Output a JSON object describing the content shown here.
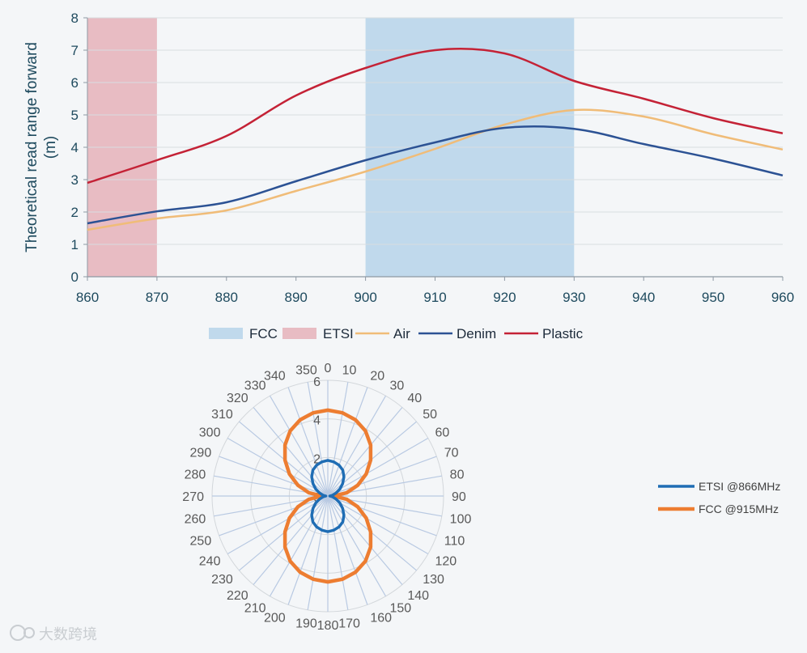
{
  "chart_data": [
    {
      "type": "line",
      "ylabel": "Theoretical read range forward\n(m)",
      "xlabel": "",
      "xlim": [
        860,
        960
      ],
      "ylim": [
        0,
        8
      ],
      "x_ticks": [
        860,
        870,
        880,
        890,
        900,
        910,
        920,
        930,
        940,
        950,
        960
      ],
      "y_ticks": [
        0,
        1,
        2,
        3,
        4,
        5,
        6,
        7,
        8
      ],
      "grid": true,
      "legend_position": "bottom",
      "bands": [
        {
          "name": "FCC",
          "from": 900,
          "to": 930,
          "color": "#c0d9ec"
        },
        {
          "name": "ETSI",
          "from": 860,
          "to": 870,
          "color": "#e8bcc3"
        }
      ],
      "series": [
        {
          "name": "Air",
          "color": "#f0bc78",
          "width": 2.5,
          "points": [
            [
              860,
              1.45
            ],
            [
              870,
              1.8
            ],
            [
              880,
              2.05
            ],
            [
              890,
              2.65
            ],
            [
              900,
              3.25
            ],
            [
              910,
              3.95
            ],
            [
              920,
              4.7
            ],
            [
              930,
              5.15
            ],
            [
              940,
              4.95
            ],
            [
              950,
              4.4
            ],
            [
              960,
              3.93
            ]
          ]
        },
        {
          "name": "Denim",
          "color": "#2c5294",
          "width": 2.5,
          "points": [
            [
              860,
              1.65
            ],
            [
              870,
              2.02
            ],
            [
              880,
              2.3
            ],
            [
              890,
              2.95
            ],
            [
              900,
              3.6
            ],
            [
              910,
              4.15
            ],
            [
              920,
              4.6
            ],
            [
              930,
              4.57
            ],
            [
              940,
              4.1
            ],
            [
              950,
              3.65
            ],
            [
              960,
              3.13
            ]
          ]
        },
        {
          "name": "Plastic",
          "color": "#c42236",
          "width": 2.5,
          "points": [
            [
              860,
              2.9
            ],
            [
              870,
              3.6
            ],
            [
              880,
              4.35
            ],
            [
              890,
              5.6
            ],
            [
              900,
              6.45
            ],
            [
              910,
              7.0
            ],
            [
              920,
              6.9
            ],
            [
              930,
              6.05
            ],
            [
              940,
              5.5
            ],
            [
              950,
              4.9
            ],
            [
              960,
              4.43
            ]
          ]
        }
      ]
    },
    {
      "type": "radar",
      "angles": [
        0,
        10,
        20,
        30,
        40,
        50,
        60,
        70,
        80,
        90,
        100,
        110,
        120,
        130,
        140,
        150,
        160,
        170,
        180,
        190,
        200,
        210,
        220,
        230,
        240,
        250,
        260,
        270,
        280,
        290,
        300,
        310,
        320,
        330,
        340,
        350
      ],
      "radial_ticks": [
        0,
        2,
        4,
        6
      ],
      "rmax": 6,
      "legend_position": "right",
      "series": [
        {
          "name": "ETSI @866MHz",
          "color": "#1f6db4",
          "width": 3.5,
          "values": [
            1.85,
            1.8,
            1.7,
            1.55,
            1.3,
            1.0,
            0.72,
            0.45,
            0.25,
            0.1,
            0.25,
            0.45,
            0.72,
            1.0,
            1.3,
            1.55,
            1.7,
            1.8,
            1.85,
            1.8,
            1.7,
            1.55,
            1.3,
            1.0,
            0.72,
            0.45,
            0.25,
            0.1,
            0.25,
            0.45,
            0.72,
            1.0,
            1.3,
            1.55,
            1.7,
            1.8
          ]
        },
        {
          "name": "FCC @915MHz",
          "color": "#ed7d31",
          "width": 4.5,
          "values": [
            4.45,
            4.38,
            4.2,
            3.9,
            3.45,
            2.9,
            2.3,
            1.65,
            1.0,
            0.3,
            1.0,
            1.65,
            2.3,
            2.9,
            3.45,
            3.9,
            4.2,
            4.38,
            4.45,
            4.38,
            4.2,
            3.9,
            3.45,
            2.9,
            2.3,
            1.65,
            1.0,
            0.3,
            1.0,
            1.65,
            2.3,
            2.9,
            3.45,
            3.9,
            4.2,
            4.38
          ]
        }
      ]
    }
  ],
  "watermark": {
    "text": "大数跨境"
  },
  "colors": {
    "axis_text": "#1e4a5e",
    "grid": "#d9dde1",
    "spoke": "#b8c9e2",
    "radar_text": "#595959"
  }
}
